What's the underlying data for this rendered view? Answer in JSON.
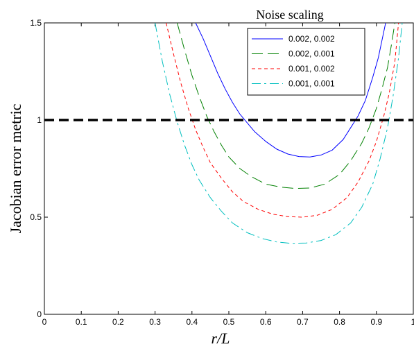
{
  "chart_data": {
    "type": "line",
    "title": "",
    "xlabel": "r/L",
    "ylabel": "Jacobian error metric",
    "xlim": [
      0,
      1
    ],
    "ylim": [
      0,
      1.5
    ],
    "xticks": [
      "0",
      "0.1",
      "0.2",
      "0.3",
      "0.4",
      "0.5",
      "0.6",
      "0.7",
      "0.8",
      "0.9",
      "1"
    ],
    "yticks": [
      "0",
      "0.5",
      "1",
      "1.5"
    ],
    "xtick_values": [
      0,
      0.1,
      0.2,
      0.3,
      0.4,
      0.5,
      0.6,
      0.7,
      0.8,
      0.9,
      1
    ],
    "ytick_values": [
      0,
      0.5,
      1,
      1.5
    ],
    "grid": false,
    "legend_title": "Noise scaling",
    "legend_position": "top-right",
    "reference_line": {
      "y": 1.0,
      "color": "#000000",
      "style": "dashed"
    },
    "series": [
      {
        "name": "0.002, 0.002",
        "color": "#0000ff",
        "dash": "solid",
        "x": [
          0.41,
          0.43,
          0.45,
          0.47,
          0.49,
          0.51,
          0.53,
          0.55,
          0.57,
          0.6,
          0.63,
          0.66,
          0.69,
          0.72,
          0.75,
          0.78,
          0.81,
          0.83,
          0.85,
          0.87,
          0.89,
          0.905,
          0.915,
          0.925
        ],
        "y": [
          1.5,
          1.42,
          1.33,
          1.24,
          1.16,
          1.09,
          1.03,
          0.985,
          0.94,
          0.89,
          0.85,
          0.825,
          0.812,
          0.81,
          0.82,
          0.845,
          0.9,
          0.96,
          1.02,
          1.1,
          1.22,
          1.32,
          1.41,
          1.5
        ]
      },
      {
        "name": "0.002, 0.001",
        "color": "#008000",
        "dash": "long-dash",
        "x": [
          0.36,
          0.38,
          0.4,
          0.42,
          0.44,
          0.46,
          0.48,
          0.5,
          0.53,
          0.56,
          0.6,
          0.64,
          0.68,
          0.72,
          0.76,
          0.8,
          0.83,
          0.86,
          0.88,
          0.9,
          0.915,
          0.93,
          0.94,
          0.95
        ],
        "y": [
          1.5,
          1.36,
          1.23,
          1.12,
          1.02,
          0.94,
          0.87,
          0.81,
          0.75,
          0.71,
          0.67,
          0.655,
          0.648,
          0.65,
          0.67,
          0.72,
          0.79,
          0.88,
          0.96,
          1.06,
          1.16,
          1.27,
          1.38,
          1.5
        ]
      },
      {
        "name": "0.001, 0.002",
        "color": "#ff0000",
        "dash": "short-dash",
        "x": [
          0.33,
          0.35,
          0.37,
          0.39,
          0.41,
          0.43,
          0.45,
          0.48,
          0.51,
          0.54,
          0.58,
          0.62,
          0.66,
          0.7,
          0.74,
          0.78,
          0.82,
          0.85,
          0.88,
          0.9,
          0.92,
          0.935,
          0.95,
          0.96
        ],
        "y": [
          1.5,
          1.34,
          1.19,
          1.06,
          0.95,
          0.86,
          0.78,
          0.7,
          0.63,
          0.58,
          0.54,
          0.515,
          0.503,
          0.5,
          0.51,
          0.54,
          0.6,
          0.68,
          0.79,
          0.89,
          1.02,
          1.14,
          1.3,
          1.5
        ]
      },
      {
        "name": "0.001, 0.001",
        "color": "#00bfbf",
        "dash": "dash-dot",
        "x": [
          0.3,
          0.32,
          0.34,
          0.36,
          0.38,
          0.4,
          0.42,
          0.45,
          0.48,
          0.51,
          0.55,
          0.59,
          0.63,
          0.67,
          0.71,
          0.75,
          0.79,
          0.83,
          0.86,
          0.89,
          0.91,
          0.93,
          0.945,
          0.96,
          0.97
        ],
        "y": [
          1.5,
          1.3,
          1.13,
          0.99,
          0.87,
          0.77,
          0.69,
          0.6,
          0.53,
          0.47,
          0.42,
          0.39,
          0.372,
          0.365,
          0.367,
          0.38,
          0.41,
          0.47,
          0.55,
          0.67,
          0.8,
          0.96,
          1.12,
          1.32,
          1.5
        ]
      }
    ]
  }
}
